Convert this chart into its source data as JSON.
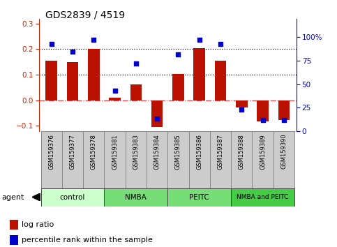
{
  "title": "GDS2839 / 4519",
  "samples": [
    "GSM159376",
    "GSM159377",
    "GSM159378",
    "GSM159381",
    "GSM159383",
    "GSM159384",
    "GSM159385",
    "GSM159386",
    "GSM159387",
    "GSM159388",
    "GSM159389",
    "GSM159390"
  ],
  "log_ratio": [
    0.155,
    0.15,
    0.2,
    0.01,
    0.062,
    -0.105,
    0.103,
    0.205,
    0.155,
    -0.027,
    -0.082,
    -0.078
  ],
  "percentile_rank": [
    93,
    85,
    97,
    43,
    72,
    13,
    82,
    97,
    93,
    23,
    12,
    12
  ],
  "bar_color": "#bb1100",
  "scatter_color": "#0000cc",
  "ylim_left": [
    -0.12,
    0.32
  ],
  "ylim_right": [
    0,
    120
  ],
  "yticks_left": [
    -0.1,
    0.0,
    0.1,
    0.2,
    0.3
  ],
  "yticks_right": [
    0,
    25,
    50,
    75,
    100
  ],
  "ytick_labels_right": [
    "0",
    "25",
    "50",
    "75",
    "100%"
  ],
  "hline_0_color": "#cc4444",
  "hline_0_style": "-.",
  "hline_dotted_color": "black",
  "hline_dotted_style": ":",
  "group_defs": [
    {
      "label": "control",
      "start": 0,
      "end": 2,
      "color": "#ccffcc"
    },
    {
      "label": "NMBA",
      "start": 3,
      "end": 5,
      "color": "#77dd77"
    },
    {
      "label": "PEITC",
      "start": 6,
      "end": 8,
      "color": "#77dd77"
    },
    {
      "label": "NMBA and PEITC",
      "start": 9,
      "end": 11,
      "color": "#44cc44"
    }
  ],
  "legend_bar_label": "log ratio",
  "legend_scatter_label": "percentile rank within the sample",
  "left_tick_color": "#cc2200",
  "right_tick_color": "#0000cc",
  "box_color": "#cccccc",
  "box_edge_color": "#888888"
}
